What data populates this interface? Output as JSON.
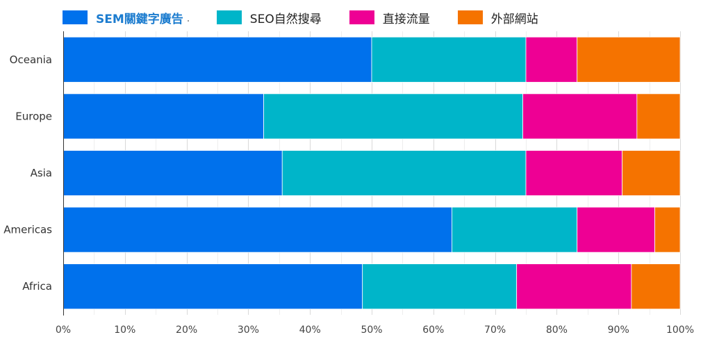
{
  "chart_data": {
    "type": "bar",
    "orientation": "horizontal",
    "stacked": "percent",
    "categories": [
      "Oceania",
      "Europe",
      "Asia",
      "Americas",
      "Africa"
    ],
    "series": [
      {
        "name": "SEM關鍵字廣告",
        "color": "#0071ec",
        "values": [
          50.0,
          32.5,
          35.5,
          63.0,
          48.5
        ]
      },
      {
        "name": "SEO自然搜尋",
        "color": "#00b5c9",
        "values": [
          25.0,
          42.0,
          39.5,
          20.3,
          25.0
        ]
      },
      {
        "name": "直接流量",
        "color": "#ee0094",
        "values": [
          8.3,
          18.5,
          15.6,
          12.6,
          18.6
        ]
      },
      {
        "name": "外部網站",
        "color": "#f57300",
        "values": [
          16.7,
          7.0,
          9.4,
          4.1,
          7.9
        ]
      }
    ],
    "xticks": [
      "0%",
      "10%",
      "20%",
      "30%",
      "40%",
      "50%",
      "60%",
      "70%",
      "80%",
      "90%",
      "100%"
    ],
    "xlim": [
      0,
      100
    ],
    "grid": true,
    "legend_position": "top-left",
    "legend_active": 0
  }
}
